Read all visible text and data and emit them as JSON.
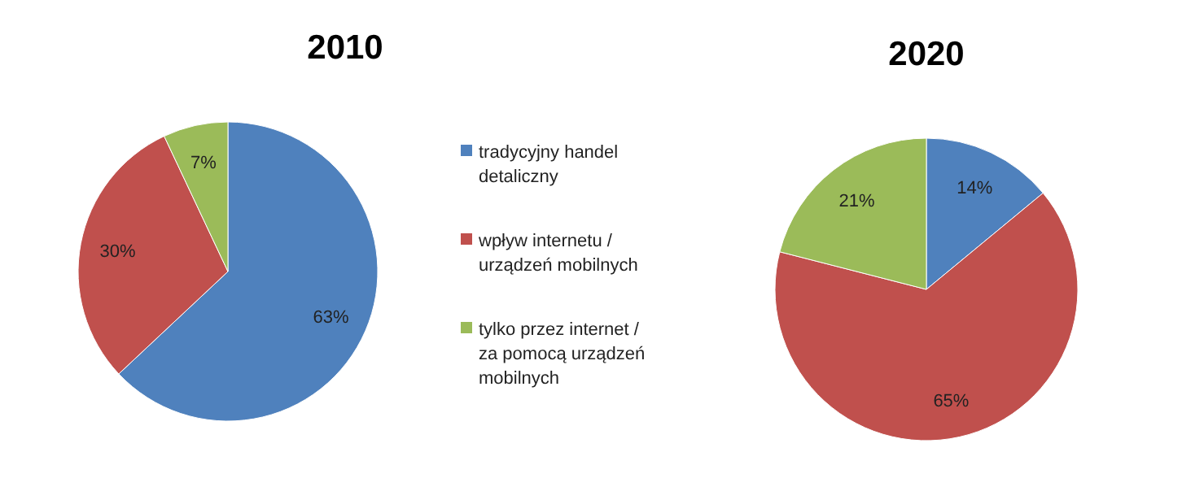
{
  "chart_data": [
    {
      "type": "pie",
      "title": "2010",
      "categories": [
        "tradycyjny handel detaliczny",
        "wpływ internetu / urządzeń mobilnych",
        "tylko przez internet / za pomocą urządzeń mobilnych"
      ],
      "values": [
        63,
        30,
        7
      ],
      "value_labels": [
        "63%",
        "30%",
        "7%"
      ],
      "colors": [
        "#4f81bd",
        "#c0504d",
        "#9bbb59"
      ],
      "legend": "right"
    },
    {
      "type": "pie",
      "title": "2020",
      "categories": [
        null,
        null,
        null
      ],
      "values": [
        14,
        65,
        21
      ],
      "value_labels": [
        "14%",
        "65%",
        "21%"
      ],
      "colors": [
        "#4f81bd",
        "#c0504d",
        "#9bbb59"
      ]
    }
  ]
}
